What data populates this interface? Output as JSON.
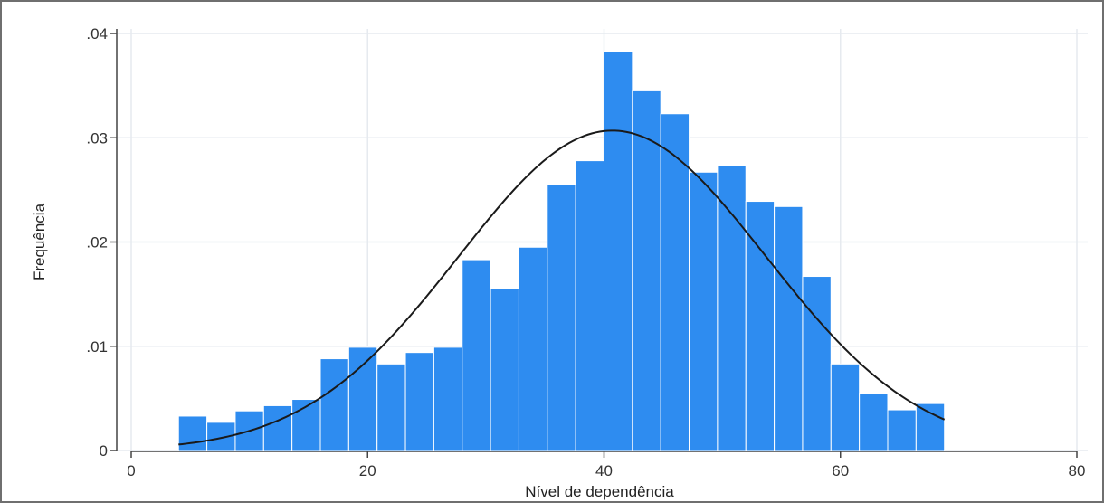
{
  "chart_data": {
    "type": "bar",
    "xlabel": "Nível de dependência",
    "ylabel": "Frequência",
    "xlim": [
      0,
      80
    ],
    "ylim": [
      0,
      0.04
    ],
    "x_ticks": [
      {
        "value": 0,
        "label": "0"
      },
      {
        "value": 20,
        "label": "20"
      },
      {
        "value": 40,
        "label": "40"
      },
      {
        "value": 60,
        "label": "60"
      },
      {
        "value": 80,
        "label": "80"
      }
    ],
    "y_ticks": [
      {
        "value": 0,
        "label": "0"
      },
      {
        "value": 0.01,
        "label": ".01"
      },
      {
        "value": 0.02,
        "label": ".02"
      },
      {
        "value": 0.03,
        "label": ".03"
      },
      {
        "value": 0.04,
        "label": ".04"
      }
    ],
    "grid": true,
    "bin_width": 2.4,
    "bins_start": [
      4,
      6.4,
      8.8,
      11.2,
      13.6,
      16,
      18.4,
      20.8,
      23.2,
      25.6,
      28,
      30.4,
      32.8,
      35.2,
      37.6,
      40,
      42.4,
      44.8,
      47.2,
      49.6,
      52,
      54.4,
      56.8,
      59.2,
      61.6,
      64,
      66.4
    ],
    "values": [
      0.0033,
      0.0027,
      0.0038,
      0.0043,
      0.0049,
      0.0088,
      0.0099,
      0.0083,
      0.0094,
      0.0099,
      0.0183,
      0.0155,
      0.0195,
      0.0255,
      0.0278,
      0.0383,
      0.0345,
      0.0323,
      0.0267,
      0.0273,
      0.0239,
      0.0234,
      0.0167,
      0.0083,
      0.0055,
      0.0039,
      0.0045
    ],
    "normal_curve": {
      "mean": 40.7,
      "sd": 13.0
    },
    "colors": {
      "bar": "#2e8cf0",
      "bar_edge": "#ffffff",
      "curve": "#1a1a1a",
      "grid": "#e6eaef",
      "axis": "#444444"
    }
  }
}
